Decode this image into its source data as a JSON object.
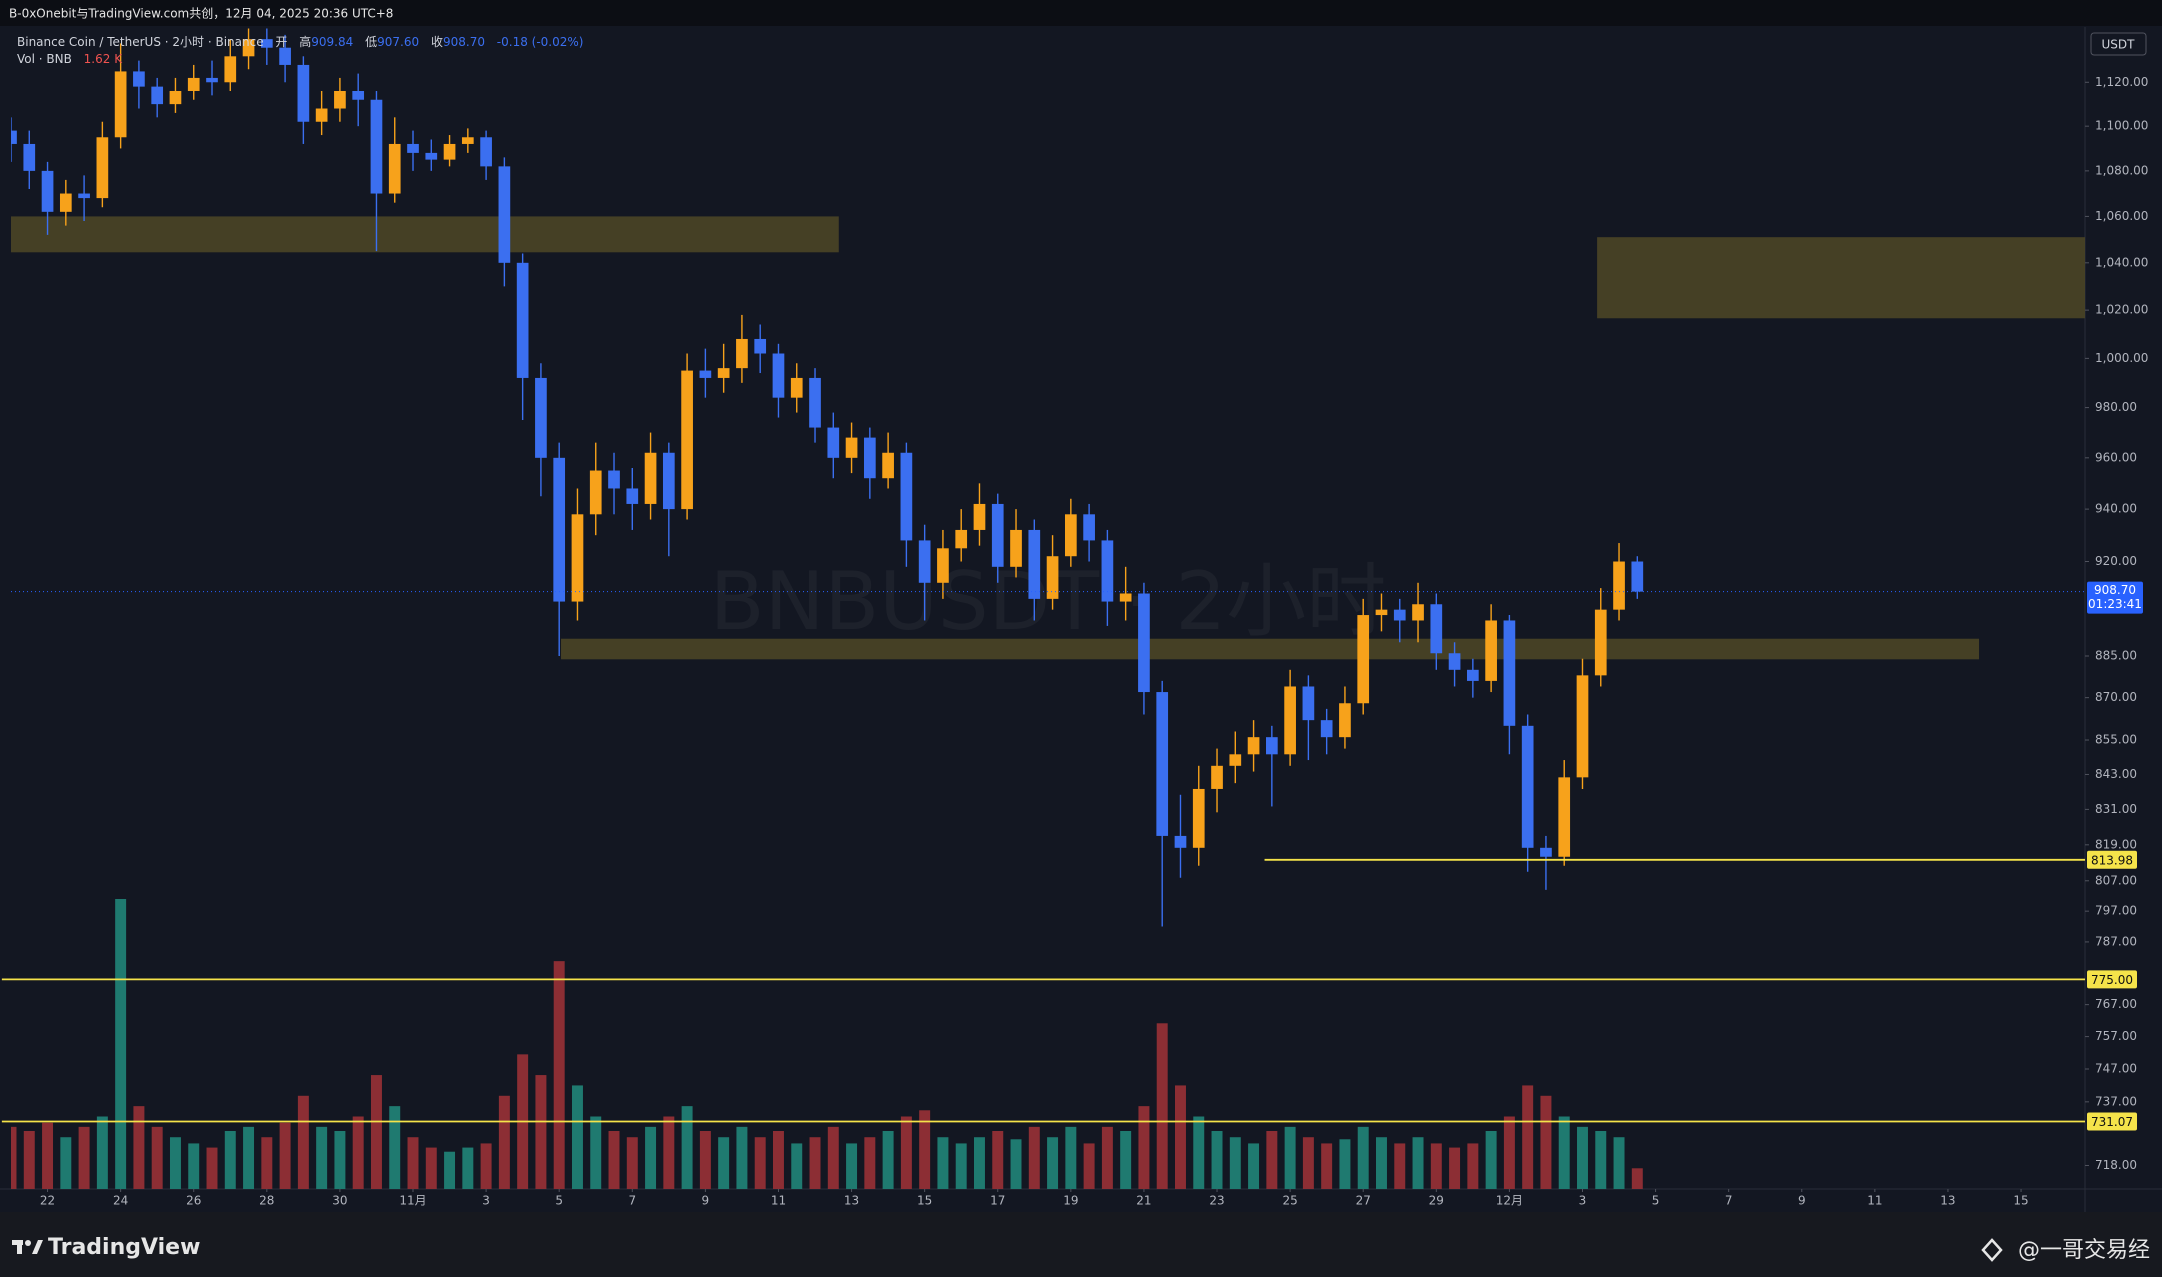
{
  "header": {
    "text": "B-0xOnebit与TradingView.com共创，12月 04, 2025 20:36 UTC+8"
  },
  "chart_data": {
    "type": "candlestick",
    "title": "Binance Coin / TetherUS · 2小时 · Binance",
    "legend": {
      "open_label": "开",
      "high_label": "高",
      "high": "909.84",
      "low_label": "低",
      "low": "907.60",
      "close_label": "收",
      "close": "908.70",
      "change": "-0.18 (-0.02%)"
    },
    "volume_title": "Vol · BNB",
    "volume_last": "1.62 K",
    "watermark": "BNBUSDT · 2小时",
    "unit": "USDT",
    "categories": [
      null,
      null,
      "22",
      null,
      null,
      null,
      "24",
      null,
      null,
      null,
      "26",
      null,
      null,
      null,
      "28",
      null,
      null,
      null,
      "30",
      null,
      null,
      null,
      "11月",
      null,
      null,
      null,
      "3",
      null,
      null,
      null,
      "5",
      null,
      null,
      null,
      "7",
      null,
      null,
      null,
      "9",
      null,
      null,
      null,
      "11",
      null,
      null,
      null,
      "13",
      null,
      null,
      null,
      "15",
      null,
      null,
      null,
      "17",
      null,
      null,
      null,
      "19",
      null,
      null,
      null,
      "21",
      null,
      null,
      null,
      "23",
      null,
      null,
      null,
      "25",
      null,
      null,
      null,
      "27",
      null,
      null,
      null,
      "29",
      null,
      null,
      null,
      "12月",
      null,
      null,
      null,
      "3",
      null,
      null,
      null,
      "5",
      null,
      null,
      null,
      "7",
      null,
      null,
      null,
      "9",
      null,
      null,
      null,
      "11",
      null,
      null,
      null,
      "13",
      null,
      null,
      null,
      "15",
      null,
      null,
      null
    ],
    "open": [
      1098,
      1092,
      1080,
      1062,
      1070,
      1068,
      1095,
      1125,
      1118,
      1110,
      1116,
      1122,
      1120,
      1132,
      1140,
      1136,
      1128,
      1102,
      1108,
      1116,
      1112,
      1070,
      1092,
      1088,
      1085,
      1092,
      1095,
      1082,
      1040,
      992,
      960,
      905,
      938,
      955,
      948,
      942,
      962,
      940,
      995,
      992,
      996,
      1008,
      1002,
      984,
      992,
      972,
      960,
      968,
      952,
      962,
      928,
      912,
      925,
      932,
      942,
      918,
      932,
      906,
      922,
      938,
      928,
      905,
      908,
      872,
      822,
      818,
      838,
      846,
      850,
      856,
      850,
      874,
      862,
      856,
      868,
      900,
      902,
      898,
      904,
      886,
      880,
      876,
      898,
      860,
      818,
      815,
      842,
      878,
      902,
      920,
      null,
      null,
      null,
      null,
      null,
      null,
      null,
      null,
      null,
      null,
      null,
      null,
      null,
      null,
      null,
      null,
      null,
      null,
      null,
      null,
      null,
      null,
      null,
      null
    ],
    "high": [
      1104,
      1098,
      1084,
      1076,
      1078,
      1102,
      1138,
      1130,
      1122,
      1122,
      1128,
      1130,
      1140,
      1145,
      1145,
      1142,
      1132,
      1116,
      1122,
      1124,
      1116,
      1104,
      1098,
      1094,
      1096,
      1099,
      1098,
      1086,
      1044,
      998,
      966,
      948,
      966,
      962,
      956,
      970,
      966,
      1002,
      1004,
      1006,
      1018,
      1014,
      1006,
      998,
      996,
      978,
      974,
      972,
      970,
      966,
      934,
      932,
      940,
      950,
      946,
      940,
      936,
      930,
      944,
      942,
      932,
      918,
      912,
      876,
      836,
      846,
      852,
      858,
      862,
      860,
      880,
      878,
      866,
      874,
      906,
      908,
      906,
      912,
      908,
      890,
      884,
      904,
      900,
      864,
      822,
      848,
      884,
      910,
      927,
      922,
      null,
      null,
      null,
      null,
      null,
      null,
      null,
      null,
      null,
      null,
      null,
      null,
      null,
      null,
      null,
      null,
      null,
      null,
      null,
      null,
      null,
      null,
      null,
      null
    ],
    "low": [
      1084,
      1072,
      1052,
      1056,
      1058,
      1064,
      1090,
      1108,
      1104,
      1106,
      1112,
      1114,
      1116,
      1126,
      1128,
      1120,
      1092,
      1096,
      1102,
      1100,
      1045,
      1066,
      1080,
      1080,
      1082,
      1088,
      1076,
      1030,
      975,
      945,
      885,
      898,
      930,
      938,
      932,
      936,
      922,
      936,
      984,
      986,
      990,
      994,
      976,
      978,
      966,
      952,
      954,
      944,
      948,
      918,
      898,
      906,
      920,
      926,
      912,
      914,
      898,
      902,
      918,
      920,
      896,
      898,
      864,
      792,
      808,
      812,
      830,
      840,
      844,
      832,
      846,
      848,
      850,
      852,
      864,
      894,
      890,
      890,
      880,
      874,
      870,
      872,
      850,
      810,
      804,
      812,
      838,
      874,
      898,
      906,
      null,
      null,
      null,
      null,
      null,
      null,
      null,
      null,
      null,
      null,
      null,
      null,
      null,
      null,
      null,
      null,
      null,
      null,
      null,
      null,
      null,
      null,
      null,
      null
    ],
    "close": [
      1092,
      1080,
      1062,
      1070,
      1068,
      1095,
      1125,
      1118,
      1110,
      1116,
      1122,
      1120,
      1132,
      1140,
      1136,
      1128,
      1102,
      1108,
      1116,
      1112,
      1070,
      1092,
      1088,
      1085,
      1092,
      1095,
      1082,
      1040,
      992,
      960,
      905,
      938,
      955,
      948,
      942,
      962,
      940,
      995,
      992,
      996,
      1008,
      1002,
      984,
      992,
      972,
      960,
      968,
      952,
      962,
      928,
      912,
      925,
      932,
      942,
      918,
      932,
      906,
      922,
      938,
      928,
      905,
      908,
      872,
      822,
      818,
      838,
      846,
      850,
      856,
      850,
      874,
      862,
      856,
      868,
      900,
      902,
      898,
      904,
      886,
      880,
      876,
      898,
      860,
      818,
      815,
      842,
      878,
      902,
      920,
      908.7,
      null,
      null,
      null,
      null,
      null,
      null,
      null,
      null,
      null,
      null,
      null,
      null,
      null,
      null,
      null,
      null,
      null,
      null,
      null,
      null,
      null,
      null,
      null,
      null
    ],
    "volume": [
      30,
      28,
      32,
      25,
      30,
      35,
      140,
      40,
      30,
      25,
      22,
      20,
      28,
      30,
      25,
      32,
      45,
      30,
      28,
      35,
      55,
      40,
      25,
      20,
      18,
      20,
      22,
      45,
      65,
      55,
      110,
      50,
      35,
      28,
      25,
      30,
      35,
      40,
      28,
      25,
      30,
      25,
      28,
      22,
      25,
      30,
      22,
      25,
      28,
      35,
      38,
      25,
      22,
      25,
      28,
      24,
      30,
      25,
      30,
      22,
      30,
      28,
      40,
      80,
      50,
      35,
      28,
      25,
      22,
      28,
      30,
      25,
      22,
      24,
      30,
      25,
      22,
      25,
      22,
      20,
      22,
      28,
      35,
      50,
      45,
      35,
      30,
      28,
      25,
      10,
      null,
      null,
      null,
      null,
      null,
      null,
      null,
      null,
      null,
      null,
      null,
      null,
      null,
      null,
      null,
      null,
      null,
      null,
      null,
      null,
      null,
      null,
      null,
      null
    ],
    "up_color": "#f7a21b",
    "down_color": "#3b6ff0",
    "volume_up_color": "#1f7a70",
    "volume_down_color": "#8c2e34",
    "log_scale": true,
    "grid": false,
    "ylim": [
      711.1,
      1145.7
    ],
    "yticks": [
      {
        "value": 1120,
        "label": "1,120.00"
      },
      {
        "value": 1100,
        "label": "1,100.00"
      },
      {
        "value": 1080,
        "label": "1,080.00"
      },
      {
        "value": 1060,
        "label": "1,060.00"
      },
      {
        "value": 1040,
        "label": "1,040.00"
      },
      {
        "value": 1020,
        "label": "1,020.00"
      },
      {
        "value": 1000,
        "label": "1,000.00"
      },
      {
        "value": 980,
        "label": "980.00"
      },
      {
        "value": 960,
        "label": "960.00"
      },
      {
        "value": 940,
        "label": "940.00"
      },
      {
        "value": 920,
        "label": "920.00"
      },
      {
        "value": 885,
        "label": "885.00"
      },
      {
        "value": 870,
        "label": "870.00"
      },
      {
        "value": 855,
        "label": "855.00"
      },
      {
        "value": 843,
        "label": "843.00"
      },
      {
        "value": 831,
        "label": "831.00"
      },
      {
        "value": 819,
        "label": "819.00"
      },
      {
        "value": 807,
        "label": "807.00"
      },
      {
        "value": 797,
        "label": "797.00"
      },
      {
        "value": 787,
        "label": "787.00"
      },
      {
        "value": 767,
        "label": "767.00"
      },
      {
        "value": 757,
        "label": "757.00"
      },
      {
        "value": 747,
        "label": "747.00"
      },
      {
        "value": 737,
        "label": "737.00"
      },
      {
        "value": 718,
        "label": "718.00"
      }
    ],
    "current_price": {
      "value": 908.7,
      "label": "908.70"
    },
    "countdown": "01:23:41",
    "current_color": "#2962ff",
    "levels": [
      813.98,
      {
        "value": 775,
        "label": "775.00"
      },
      731.07
    ],
    "level_color": "#f5e34a",
    "zones": [
      {
        "ylim": [
          1044.5,
          1060
        ]
      },
      {
        "ylim": [
          1016.6,
          1051
        ]
      },
      {
        "ylim": [
          883.8,
          891.3
        ]
      }
    ],
    "zone_color": "#4b4526"
  },
  "footer": {
    "brand": "TradingView",
    "credit": "@一哥交易经"
  }
}
